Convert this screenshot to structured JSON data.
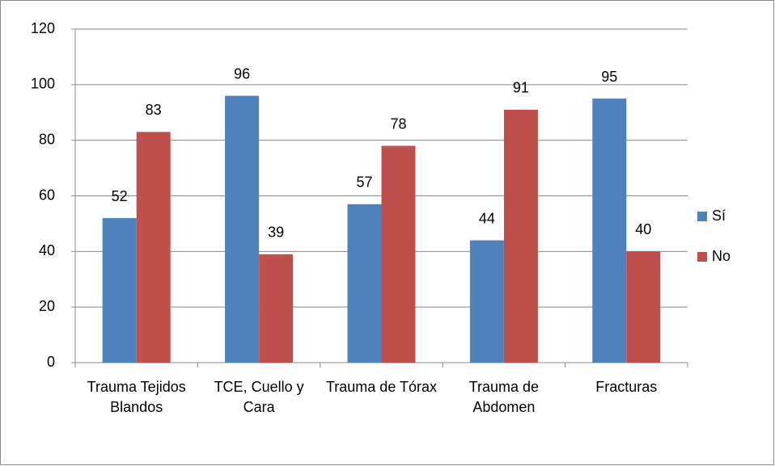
{
  "chart_data": {
    "type": "bar",
    "categories": [
      "Trauma Tejidos Blandos",
      "TCE, Cuello y Cara",
      "Trauma de Tórax",
      "Trauma de Abdomen",
      "Fracturas"
    ],
    "series": [
      {
        "name": "Sí",
        "color": "#4f81bd",
        "values": [
          52,
          96,
          57,
          44,
          95
        ]
      },
      {
        "name": "No",
        "color": "#c0504d",
        "values": [
          83,
          39,
          78,
          91,
          40
        ]
      }
    ],
    "ylim": [
      0,
      120
    ],
    "yticks": [
      0,
      20,
      40,
      60,
      80,
      100,
      120
    ],
    "grid": true,
    "legend": "right"
  }
}
